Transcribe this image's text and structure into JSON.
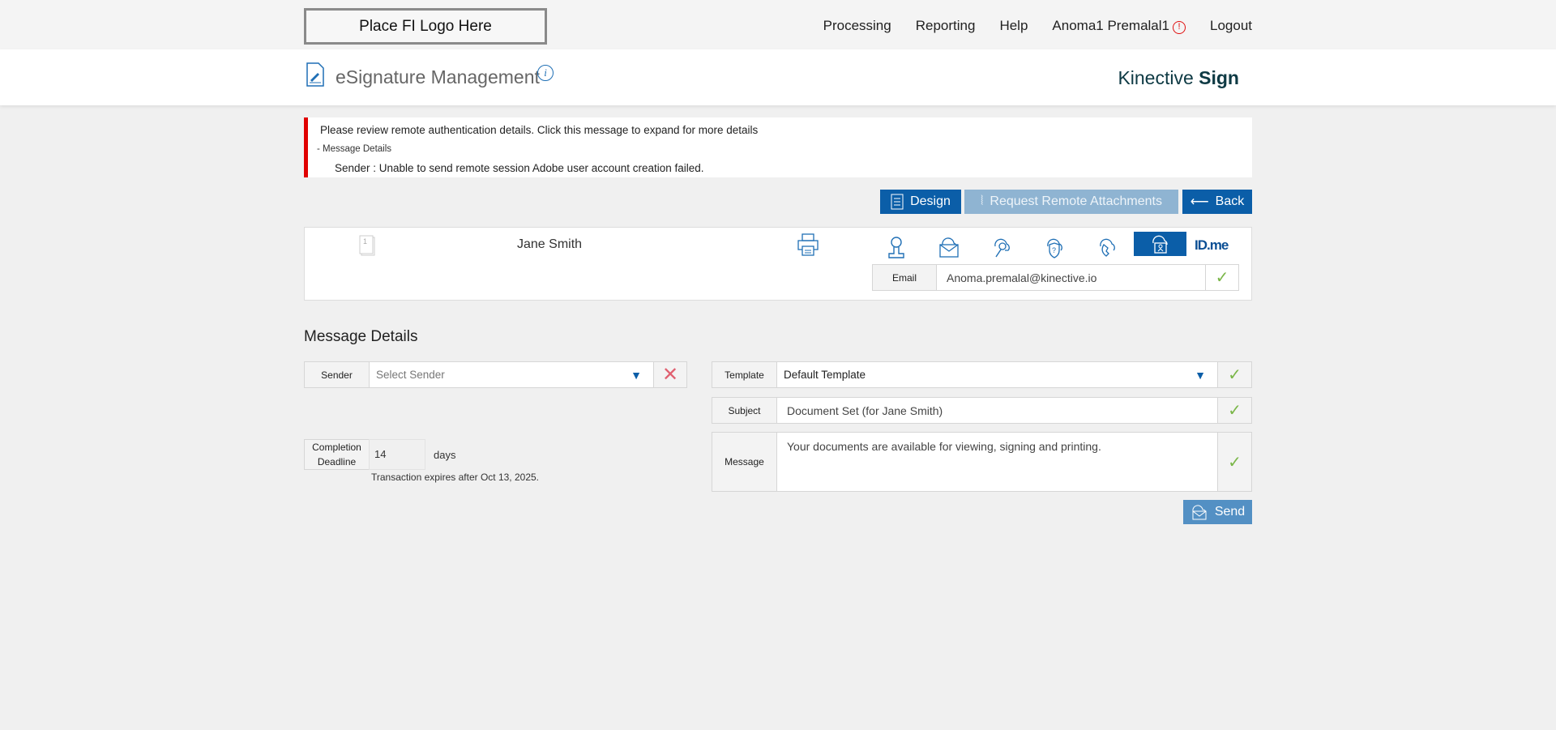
{
  "topbar": {
    "logo": "Place FI Logo Here",
    "nav": [
      "Processing",
      "Reporting",
      "Help",
      "Anoma1 Premalal1",
      "Logout"
    ],
    "alert_icon": "!"
  },
  "header": {
    "title": "eSignature Management",
    "info": "i",
    "brand_light": "Kinective ",
    "brand_bold": "Sign"
  },
  "alert": {
    "main": "Please review remote authentication details. Click this message to expand for more details",
    "toggle": "- Message Details",
    "detail": "Sender :  Unable to send remote session Adobe user account creation failed.",
    "accent": "#e00000"
  },
  "actions": {
    "design": "Design",
    "request": "Request Remote Attachments",
    "back": "Back"
  },
  "signer": {
    "doc_count": "1",
    "name": "Jane Smith",
    "auth_methods": [
      "user",
      "email",
      "key",
      "kba",
      "phone",
      "id-scan",
      "idme"
    ],
    "active_method": "id-scan",
    "idme": "ID.me",
    "email_label": "Email",
    "email_value": "Anoma.premalal@kinective.io"
  },
  "details": {
    "title": "Message Details",
    "sender_label": "Sender",
    "sender_placeholder": "Select Sender",
    "deadline_label": "Completion Deadline",
    "deadline_value": "14",
    "deadline_unit": "days",
    "expires": "Transaction expires after Oct 13, 2025.",
    "template_label": "Template",
    "template_value": "Default Template",
    "subject_label": "Subject",
    "subject_value": "Document Set (for Jane Smith)",
    "message_label": "Message",
    "message_value": "Your documents are available for viewing, signing and printing.",
    "send": "Send"
  },
  "colors": {
    "primary": "#0b5ea8",
    "disabled": "#8fb4d2",
    "send": "#5390c4",
    "check": "#7ab648"
  }
}
